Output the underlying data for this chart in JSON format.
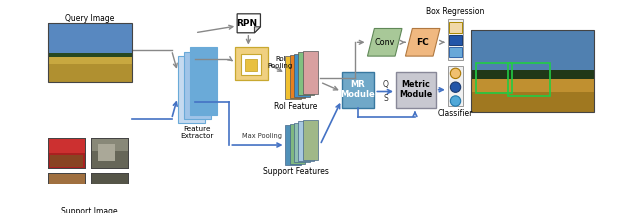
{
  "bg_color": "#ffffff",
  "labels": {
    "query_image": "Query Image",
    "support_image": "Support Image",
    "feature_extractor": "Feature\nExtractor",
    "rpn": "RPN",
    "roi_pooling": "RoI\nPooling",
    "roi_feature": "RoI Feature",
    "support_features": "Support Features",
    "max_pooling": "Max Pooling",
    "mr_module": "MR\nModule",
    "metric_module": "Metric\nModule",
    "conv": "Conv",
    "fc": "FC",
    "box_regression": "Box Regression",
    "classifier": "Classifier",
    "q_label": "Q",
    "s_label": "S"
  },
  "colors": {
    "white": "#ffffff",
    "feat_blue_light": "#c5daf0",
    "feat_blue_mid": "#a0c4e8",
    "feat_blue_dark": "#6aaad8",
    "roi_yellow": "#f0d080",
    "roi_yellow_dark": "#c8a830",
    "rf_yellow": "#f0c030",
    "rf_orange": "#e88020",
    "rf_blue": "#4090c8",
    "rf_green": "#80c080",
    "rf_pink": "#d8a0a0",
    "sf_blue": "#5090b8",
    "sf_green": "#80b880",
    "sf_teal": "#90c0b0",
    "sf_lightblue": "#a8c8e0",
    "sf_sage": "#a0b888",
    "conv_green": "#a8c898",
    "conv_green_dark": "#608858",
    "fc_peach": "#f0b880",
    "fc_dark": "#b07840",
    "mr_blue": "#70a8c8",
    "mr_blue_dark": "#3878a0",
    "metric_gray": "#c8c8d0",
    "metric_gray_dark": "#888898",
    "arrow_gray": "#888888",
    "arrow_blue": "#4472c4",
    "box_cream": "#f0d8a8",
    "box_blue_dark": "#2255a8",
    "box_blue_light": "#68a8d8",
    "circle_orange": "#f0c070",
    "circle_blue_dark": "#2255a8",
    "circle_blue_light": "#50a8d8",
    "sky_blue": "#5888c0",
    "sky_light": "#88aacc",
    "ground_tan": "#b09030",
    "ground_mid": "#c8a840",
    "tree_dark": "#284820",
    "out_sky": "#5080b0",
    "out_ground": "#a07820",
    "out_tree": "#203818",
    "rpn_fold": "#d0d0d0"
  }
}
